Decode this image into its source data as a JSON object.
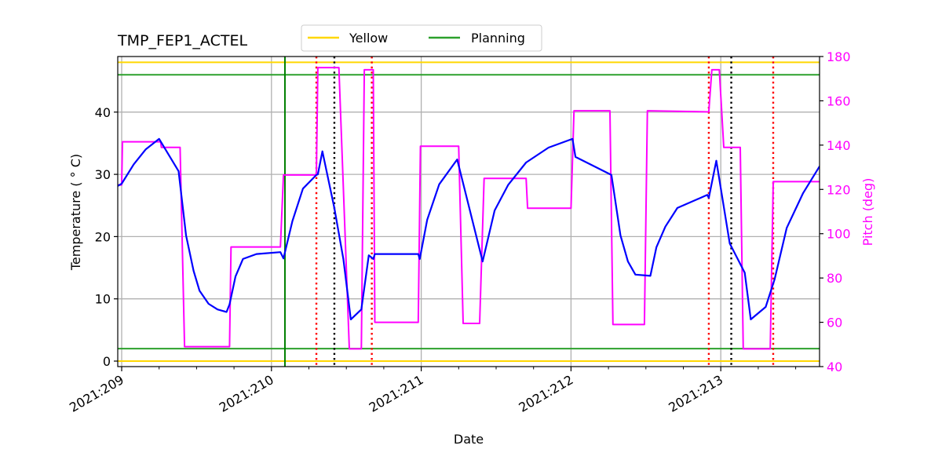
{
  "title": "TMP_FEP1_ACTEL",
  "legend": {
    "items": [
      {
        "label": "Yellow",
        "color": "#ffd700"
      },
      {
        "label": "Planning",
        "color": "#2ca02c"
      }
    ]
  },
  "axes": {
    "xlabel": "Date",
    "ylabel_left": "Temperature ($^\\circ$C)",
    "ylabel_left_display": "Temperature ( ° C)",
    "ylabel_right": "Pitch (deg)"
  },
  "colors": {
    "temperature": "#0000ff",
    "pitch": "#ff00ff",
    "yellow_limit": "#ffd700",
    "planning_limit": "#2ca02c",
    "grid": "#b0b0b0",
    "red_marker": "#ff0000",
    "black_marker": "#000000",
    "planning_vline": "#008000"
  },
  "chart_data": {
    "type": "line",
    "title": "TMP_FEP1_ACTEL",
    "xlabel": "Date",
    "ylabel": "Temperature (°C)",
    "ylabel_right": "Pitch (deg)",
    "x_ticks": [
      {
        "value": 209,
        "label": "2021:209"
      },
      {
        "value": 210,
        "label": "2021:210"
      },
      {
        "value": 211,
        "label": "2021:211"
      },
      {
        "value": 212,
        "label": "2021:212"
      },
      {
        "value": 213,
        "label": "2021:213"
      }
    ],
    "xlim": [
      208.97,
      213.66
    ],
    "ylim": [
      -1,
      48.8
    ],
    "ylim_right": [
      40,
      180
    ],
    "y_ticks": [
      0,
      10,
      20,
      30,
      40
    ],
    "y_ticks_right": [
      40,
      60,
      80,
      100,
      120,
      140,
      160,
      180
    ],
    "grid": true,
    "legend_position": "top center (above axes)",
    "hlines": [
      {
        "name": "Yellow",
        "axis": "left",
        "y": 48,
        "color": "#ffd700"
      },
      {
        "name": "Yellow",
        "axis": "left",
        "y": 0,
        "color": "#ffd700"
      },
      {
        "name": "Planning",
        "axis": "left",
        "y": 46,
        "color": "#2ca02c"
      },
      {
        "name": "Planning",
        "axis": "left",
        "y": 2,
        "color": "#2ca02c"
      }
    ],
    "vlines": [
      {
        "x": 210.09,
        "color": "#008000",
        "style": "solid"
      },
      {
        "x": 210.3,
        "color": "#ff0000",
        "style": "dotted"
      },
      {
        "x": 210.42,
        "color": "#000000",
        "style": "dotted"
      },
      {
        "x": 210.67,
        "color": "#ff0000",
        "style": "dotted"
      },
      {
        "x": 212.92,
        "color": "#ff0000",
        "style": "dotted"
      },
      {
        "x": 213.07,
        "color": "#000000",
        "style": "dotted"
      },
      {
        "x": 213.35,
        "color": "#ff0000",
        "style": "dotted"
      }
    ],
    "series": [
      {
        "name": "Temperature",
        "axis": "left",
        "color": "#0000ff",
        "x": [
          208.97,
          209.0,
          209.08,
          209.16,
          209.25,
          209.38,
          209.43,
          209.48,
          209.52,
          209.58,
          209.64,
          209.7,
          209.72,
          209.76,
          209.81,
          209.9,
          210.06,
          210.08,
          210.14,
          210.21,
          210.3,
          210.31,
          210.34,
          210.42,
          210.48,
          210.53,
          210.6,
          210.65,
          210.68,
          210.69,
          210.98,
          210.99,
          211.04,
          211.12,
          211.24,
          211.41,
          211.49,
          211.58,
          211.7,
          211.85,
          212.01,
          212.03,
          212.27,
          212.33,
          212.38,
          212.43,
          212.53,
          212.57,
          212.63,
          212.71,
          212.91,
          212.92,
          212.97,
          213.06,
          213.16,
          213.2,
          213.3,
          213.36,
          213.44,
          213.55,
          213.66
        ],
        "values": [
          28.1,
          28.5,
          31.6,
          34.0,
          35.7,
          30.5,
          20.2,
          14.5,
          11.3,
          9.2,
          8.3,
          7.9,
          9.1,
          13.6,
          16.4,
          17.2,
          17.5,
          16.5,
          22.5,
          27.7,
          29.9,
          30.0,
          33.7,
          24.6,
          16.4,
          6.7,
          8.3,
          17.0,
          16.4,
          17.2,
          17.2,
          16.4,
          22.7,
          28.4,
          32.4,
          16.0,
          24.2,
          28.3,
          31.9,
          34.3,
          35.7,
          32.8,
          29.9,
          20.2,
          16.0,
          13.9,
          13.7,
          18.3,
          21.6,
          24.6,
          26.7,
          26.2,
          32.2,
          18.9,
          14.2,
          6.7,
          8.7,
          13.2,
          21.4,
          27.0,
          31.3
        ]
      },
      {
        "name": "Pitch",
        "axis": "right",
        "color": "#ff00ff",
        "x": [
          208.97,
          209.0,
          209.005,
          209.26,
          209.265,
          209.39,
          209.42,
          209.72,
          209.73,
          210.06,
          210.08,
          210.3,
          210.31,
          210.45,
          210.52,
          210.6,
          210.62,
          210.68,
          210.69,
          210.98,
          210.995,
          211.25,
          211.28,
          211.39,
          211.42,
          211.7,
          211.71,
          212.0,
          212.02,
          212.26,
          212.28,
          212.49,
          212.51,
          212.92,
          212.94,
          212.99,
          213.02,
          213.13,
          213.15,
          213.33,
          213.35,
          213.66
        ],
        "values": [
          122,
          122,
          141.5,
          141.5,
          139,
          139,
          49,
          49,
          94,
          94,
          126.5,
          126.5,
          175,
          175,
          48,
          48,
          174,
          174,
          60,
          60,
          139.5,
          139.5,
          59.5,
          59.5,
          125,
          125,
          111.5,
          111.5,
          155.5,
          155.5,
          59,
          59,
          155.5,
          155,
          174,
          174,
          139,
          139,
          48,
          48,
          123.5,
          123.5
        ]
      }
    ]
  }
}
